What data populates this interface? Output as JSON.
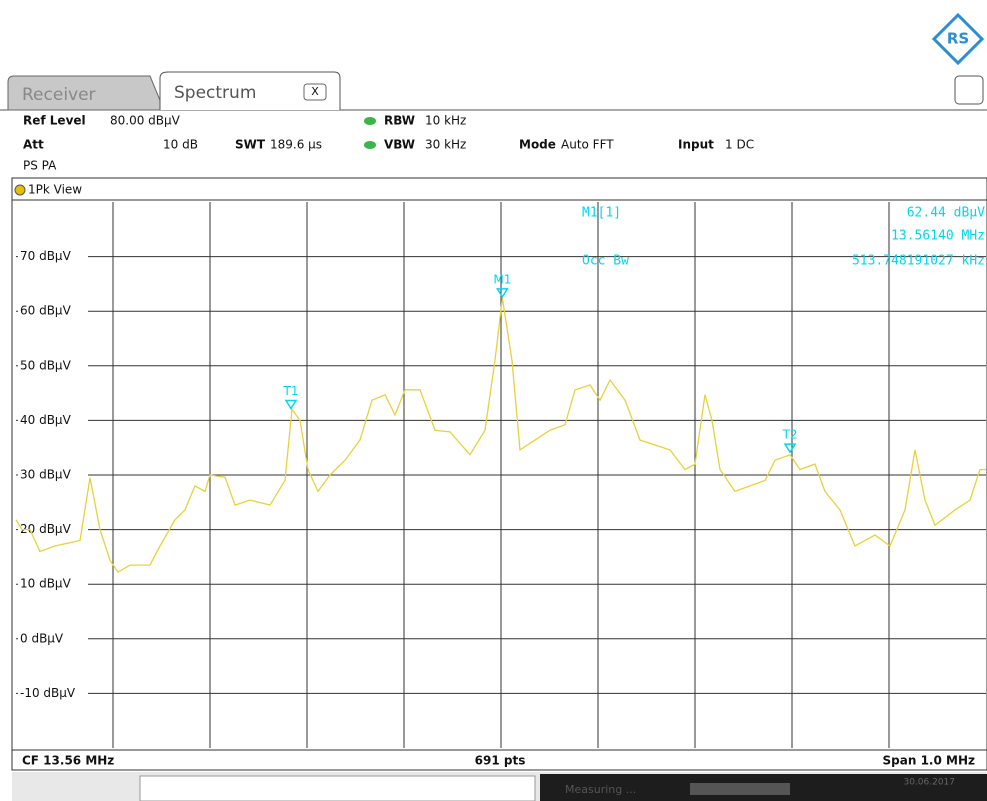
{
  "header": {
    "tabs": [
      "Receiver",
      "Spectrum"
    ],
    "close": "X"
  },
  "settings": {
    "ref_level_label": "Ref Level",
    "ref_level": "80.00 dBµV",
    "att_label": "Att",
    "att": "10 dB",
    "swt_label": "SWT",
    "swt": "189.6 µs",
    "rbw_label": "RBW",
    "rbw": "10 kHz",
    "vbw_label": "VBW",
    "vbw": "30 kHz",
    "mode_label": "Mode",
    "mode": "Auto FFT",
    "input_label": "Input",
    "input": "1 DC",
    "ps": "PS PA"
  },
  "view_title": "1Pk View",
  "readout": {
    "marker": "M1[1]",
    "level": "62.44 dBµV",
    "freq": "13.56140 MHz",
    "occ_label": "Occ Bw",
    "occ": "513.748191027 kHz"
  },
  "chart_data": {
    "type": "line",
    "color": "#e6d23c",
    "x": [
      13.06,
      13.0662,
      13.0744,
      13.0847,
      13.1002,
      13.126,
      13.1363,
      13.1466,
      13.1569,
      13.1652,
      13.1775,
      13.1981,
      13.2085,
      13.2239,
      13.2342,
      13.2445,
      13.2548,
      13.26,
      13.2755,
      13.2858,
      13.3012,
      13.3219,
      13.3373,
      13.3445,
      13.3528,
      13.361,
      13.3713,
      13.3837,
      13.3992,
      13.4146,
      13.427,
      13.4404,
      13.4507,
      13.461,
      13.4765,
      13.492,
      13.5074,
      13.528,
      13.5435,
      13.5538,
      13.5614,
      13.5713,
      13.5796,
      13.595,
      13.6105,
      13.626,
      13.6363,
      13.6518,
      13.6621,
      13.6724,
      13.6879,
      13.7033,
      13.7188,
      13.7342,
      13.7497,
      13.76,
      13.7703,
      13.7775,
      13.7858,
      13.8012,
      13.8167,
      13.8322,
      13.8425,
      13.858,
      13.8682,
      13.8837,
      13.894,
      13.9095,
      13.9249,
      13.9456,
      13.961,
      13.9765,
      13.9868,
      13.9971,
      14.0074,
      14.028,
      14.0435,
      14.0538,
      14.06
    ],
    "values": [
      21.8,
      20,
      20,
      16,
      17,
      18,
      29.5,
      20,
      14.4,
      12.2,
      13.5,
      13.5,
      17,
      21.8,
      23.6,
      28,
      27,
      30,
      29.6,
      24.5,
      25.4,
      24.5,
      29,
      42,
      40,
      31,
      27,
      30,
      32.7,
      36.4,
      43.7,
      44.7,
      41,
      45.6,
      45.6,
      38.2,
      37.9,
      33.7,
      38.2,
      51,
      62.44,
      51,
      34.6,
      36.4,
      38.2,
      39.2,
      45.6,
      46.5,
      43.7,
      47.4,
      43.7,
      36.4,
      35.5,
      34.6,
      31,
      32,
      44.7,
      40,
      31,
      27,
      28,
      29,
      32.7,
      33.7,
      31,
      32,
      27,
      23.6,
      17,
      19,
      17,
      23.6,
      34.6,
      25.4,
      20.8,
      23.6,
      25.4,
      31,
      31
    ],
    "markers": [
      {
        "label": "M1",
        "x": 13.5614,
        "y": 62.44,
        "color": "#00d8f0"
      },
      {
        "label": "T1",
        "x": 13.3435,
        "y": 42,
        "color": "#00d8f0"
      },
      {
        "label": "T2",
        "x": 13.858,
        "y": 34,
        "color": "#00d8f0"
      }
    ],
    "xlim": [
      13.06,
      14.06
    ],
    "ylim": [
      -20,
      80
    ],
    "yticks": [
      {
        "value": 70,
        "label": "70 dBµV"
      },
      {
        "value": 60,
        "label": "60 dBµV"
      },
      {
        "value": 50,
        "label": "50 dBµV"
      },
      {
        "value": 40,
        "label": "40 dBµV"
      },
      {
        "value": 30,
        "label": "30 dBµV"
      },
      {
        "value": 20,
        "label": "20 dBµV"
      },
      {
        "value": 10,
        "label": "10 dBµV"
      },
      {
        "value": 0,
        "label": "0 dBµV"
      },
      {
        "value": -10,
        "label": "-10 dBµV"
      }
    ],
    "grid": true
  },
  "footer": {
    "cf": "CF 13.56 MHz",
    "pts": "691 pts",
    "span": "Span 1.0 MHz"
  },
  "status": {
    "state": "Measuring ...",
    "date": "30.06.2017"
  }
}
